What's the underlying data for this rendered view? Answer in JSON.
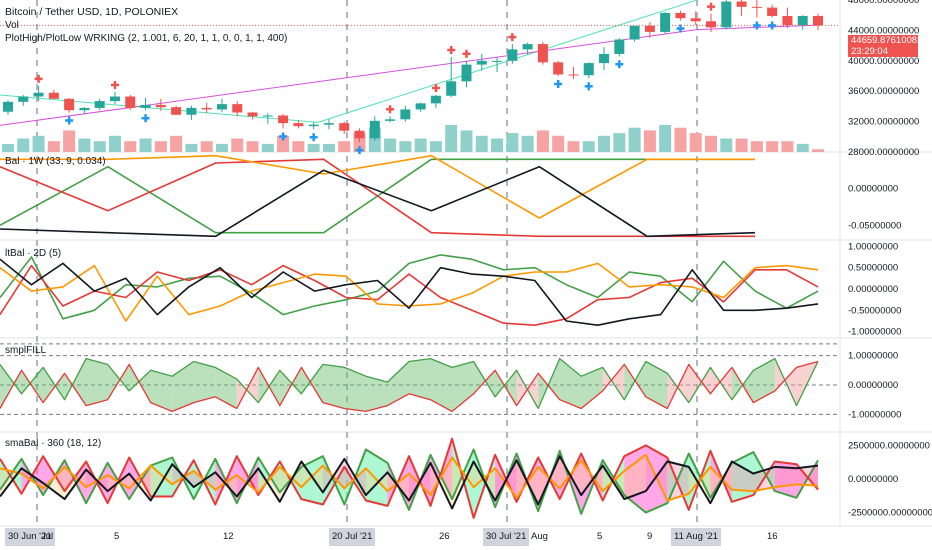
{
  "header": {
    "symbol_line": "Bitcoin / Tether USD, 1D, POLONIEX",
    "vol_label": "Vol",
    "indicator": "PlotHigh/PlotLow WRKING (2, 1.001, 6, 20, 1, 1, 0, 0, 1, 1, 400)"
  },
  "last_price": {
    "value": "44659.87610081",
    "countdown": "23:29:04"
  },
  "colors": {
    "up": "#26a69a",
    "down": "#ef5350",
    "vol_up": "#8fd1ca",
    "vol_down": "#f5a3a3",
    "green": "#43a047",
    "red": "#e53935",
    "orange": "#ff9800",
    "black": "#131722",
    "teal_line": "#4fe3b0",
    "magenta_line": "#d64ee0",
    "pink_fill": "#ff5fd4",
    "blue_cross": "#2196f3"
  },
  "x_axis": {
    "labels": [
      "30 Jun '21",
      "Jul",
      "5",
      "12",
      "20 Jul '21",
      "26",
      "30 Jul '21",
      "Aug",
      "5",
      "9",
      "11 Aug '21",
      "16"
    ],
    "highlighted": [
      "30 Jun '21",
      "20 Jul '21",
      "30 Jul '21",
      "11 Aug '21"
    ]
  },
  "panes": [
    {
      "name": "price",
      "labels": [
        "48000.00000000",
        "44000.00000000",
        "40000.00000000",
        "36000.00000000",
        "32000.00000000",
        "28000.00000000"
      ]
    },
    {
      "name": "bal",
      "title": "Bal · 1W (33, 9, 0.034)",
      "labels": [
        "0.00000000",
        "-0.05000000"
      ]
    },
    {
      "name": "ltbal",
      "title": "ltBal · 2D (5)",
      "labels": [
        "1.00000000",
        "0.50000000",
        "0.00000000",
        "-0.50000000",
        "-1.00000000"
      ]
    },
    {
      "name": "smpl",
      "title": "smplFILL",
      "labels": [
        "1.00000000",
        "0.00000000",
        "-1.00000000"
      ]
    },
    {
      "name": "smabal",
      "title": "smaBal · 360 (18, 12)",
      "labels": [
        "2500000.00000000",
        "0.00000000",
        "-2500000.00000000"
      ]
    }
  ],
  "chart_data": [
    {
      "type": "candlestick",
      "title": "Bitcoin / Tether USD, 1D, POLONIEX",
      "ylim": [
        28000,
        48000
      ],
      "x": [
        "Jun 27",
        "Jun 28",
        "Jun 29",
        "Jun 30",
        "Jul 1",
        "Jul 2",
        "Jul 3",
        "Jul 4",
        "Jul 5",
        "Jul 6",
        "Jul 7",
        "Jul 8",
        "Jul 9",
        "Jul 10",
        "Jul 11",
        "Jul 12",
        "Jul 13",
        "Jul 14",
        "Jul 15",
        "Jul 16",
        "Jul 17",
        "Jul 18",
        "Jul 19",
        "Jul 20",
        "Jul 21",
        "Jul 22",
        "Jul 23",
        "Jul 24",
        "Jul 25",
        "Jul 26",
        "Jul 27",
        "Jul 28",
        "Jul 29",
        "Jul 30",
        "Jul 31",
        "Aug 1",
        "Aug 2",
        "Aug 3",
        "Aug 4",
        "Aug 5",
        "Aug 6",
        "Aug 7",
        "Aug 8",
        "Aug 9",
        "Aug 10",
        "Aug 11",
        "Aug 12",
        "Aug 13",
        "Aug 14",
        "Aug 15",
        "Aug 16",
        "Aug 17",
        "Aug 18",
        "Aug 19"
      ],
      "open": [
        33300,
        34600,
        35300,
        35800,
        35000,
        33500,
        33800,
        34700,
        35300,
        33800,
        34200,
        33900,
        32900,
        33800,
        33600,
        34300,
        33200,
        32700,
        32800,
        31800,
        31400,
        31600,
        31800,
        30800,
        29800,
        32100,
        32300,
        33600,
        34400,
        35400,
        37300,
        39500,
        40000,
        40000,
        41500,
        42200,
        39800,
        38200,
        38100,
        39700,
        40900,
        42800,
        44600,
        43800,
        46300,
        45600,
        45200,
        44400,
        47800,
        47100,
        47000,
        45900,
        44700,
        45900
      ],
      "high": [
        34800,
        35500,
        36700,
        36200,
        35100,
        33900,
        35000,
        35900,
        35500,
        35100,
        35000,
        34100,
        34100,
        34500,
        35000,
        34700,
        33300,
        33100,
        33000,
        32200,
        31900,
        32300,
        32000,
        31100,
        32700,
        32700,
        34100,
        34500,
        35500,
        40500,
        40000,
        40900,
        40500,
        42200,
        42400,
        42500,
        40000,
        39200,
        39800,
        41800,
        43000,
        44500,
        45100,
        46400,
        46600,
        46500,
        46200,
        48100,
        48200,
        48000,
        47400,
        47000,
        46000,
        46200
      ],
      "low": [
        32900,
        34100,
        34700,
        35000,
        33200,
        33000,
        33500,
        34300,
        33500,
        33500,
        33400,
        32900,
        32200,
        33100,
        33300,
        32700,
        32300,
        31700,
        31100,
        31100,
        31000,
        31000,
        30400,
        29300,
        29500,
        31900,
        32000,
        33300,
        33800,
        35200,
        36500,
        38700,
        38500,
        39600,
        40800,
        39500,
        38000,
        37600,
        37700,
        38800,
        40600,
        42500,
        43000,
        43500,
        45300,
        44700,
        43800,
        44100,
        45900,
        45700,
        45700,
        44300,
        44100,
        44000
      ],
      "close": [
        34600,
        35300,
        35800,
        35000,
        33500,
        33800,
        34700,
        35300,
        33800,
        34200,
        33900,
        32900,
        33800,
        33600,
        34300,
        33200,
        32700,
        32800,
        31800,
        31400,
        31600,
        31800,
        30800,
        29800,
        32100,
        32300,
        33600,
        34400,
        35400,
        37300,
        39500,
        40000,
        40000,
        41500,
        42200,
        39800,
        38200,
        38100,
        39700,
        40900,
        42800,
        44600,
        43800,
        46300,
        45600,
        45200,
        44400,
        47800,
        47100,
        47000,
        45900,
        44700,
        45900,
        44659.88
      ]
    },
    {
      "type": "bar",
      "title": "Vol",
      "series": [
        {
          "name": "Vol",
          "values": [
            3,
            5,
            6,
            4,
            8,
            5,
            4,
            6,
            4,
            5,
            4,
            6,
            3,
            4,
            3,
            5,
            4,
            3,
            6,
            4,
            3,
            3,
            4,
            7,
            9,
            5,
            4,
            5,
            4,
            10,
            8,
            6,
            5,
            7,
            6,
            8,
            6,
            4,
            4,
            6,
            7,
            9,
            8,
            10,
            9,
            7,
            6,
            5,
            5,
            4,
            4,
            4,
            3,
            1
          ]
        }
      ]
    },
    {
      "type": "line",
      "title": "Bal · 1W (33, 9, 0.034)",
      "ylim": [
        -0.07,
        0.05
      ],
      "x": [
        "Jun 28",
        "Jul 5",
        "Jul 12",
        "Jul 19",
        "Jul 26",
        "Aug 2",
        "Aug 9",
        "Aug 16"
      ],
      "series": [
        {
          "name": "green",
          "color": "#43a047",
          "values": [
            -0.05,
            0.03,
            -0.06,
            -0.06,
            0.04,
            0.04,
            0.04,
            0.04
          ]
        },
        {
          "name": "red",
          "color": "#e53935",
          "values": [
            0.03,
            -0.03,
            0.035,
            0.04,
            -0.06,
            -0.065,
            -0.065,
            -0.065
          ]
        },
        {
          "name": "orange",
          "color": "#ff9800",
          "values": [
            0.04,
            0.04,
            0.045,
            0.02,
            0.045,
            -0.04,
            0.04,
            0.04
          ]
        },
        {
          "name": "black",
          "color": "#131722",
          "values": [
            -0.055,
            -0.06,
            -0.065,
            0.025,
            -0.03,
            0.03,
            -0.065,
            -0.06
          ]
        }
      ]
    },
    {
      "type": "line",
      "title": "ltBal · 2D (5)",
      "ylim": [
        -1.15,
        1.15
      ],
      "x": [
        "Jun 27",
        "Jun 29",
        "Jul 1",
        "Jul 3",
        "Jul 5",
        "Jul 7",
        "Jul 9",
        "Jul 11",
        "Jul 13",
        "Jul 15",
        "Jul 17",
        "Jul 19",
        "Jul 21",
        "Jul 23",
        "Jul 25",
        "Jul 27",
        "Jul 29",
        "Jul 31",
        "Aug 2",
        "Aug 4",
        "Aug 6",
        "Aug 8",
        "Aug 10",
        "Aug 12",
        "Aug 14",
        "Aug 16",
        "Aug 18"
      ],
      "series": [
        {
          "name": "green",
          "color": "#43a047",
          "values": [
            -0.2,
            0.75,
            -0.7,
            -0.5,
            0.1,
            0.05,
            0.25,
            0.3,
            -0.1,
            -0.6,
            -0.4,
            -0.25,
            -0.05,
            0.6,
            0.8,
            0.7,
            0.45,
            0.5,
            0.1,
            -0.2,
            0.4,
            0.3,
            -0.3,
            0.65,
            -0.05,
            -0.45,
            -0.05
          ]
        },
        {
          "name": "red",
          "color": "#e53935",
          "values": [
            -0.6,
            0.55,
            -0.4,
            -0.05,
            -0.2,
            0.4,
            0.2,
            0.45,
            0.1,
            0.55,
            0.2,
            -0.2,
            -0.25,
            0.35,
            -0.2,
            -0.5,
            -0.8,
            -0.85,
            -0.7,
            -0.25,
            -0.2,
            0.15,
            0.25,
            -0.3,
            0.45,
            0.45,
            0.05
          ]
        },
        {
          "name": "orange",
          "color": "#ff9800",
          "values": [
            0.5,
            -0.05,
            0.05,
            0.55,
            -0.75,
            0.3,
            -0.6,
            -0.4,
            -0.05,
            0.15,
            0.35,
            0.3,
            -0.35,
            -0.4,
            -0.35,
            -0.1,
            0.3,
            0.4,
            0.4,
            0.6,
            0.05,
            0.1,
            0.05,
            -0.2,
            0.5,
            0.55,
            0.45
          ]
        },
        {
          "name": "black",
          "color": "#131722",
          "values": [
            0.7,
            0.1,
            0.6,
            -0.05,
            0.25,
            -0.6,
            0.05,
            0.5,
            -0.2,
            0.4,
            -0.05,
            0.1,
            0.2,
            -0.45,
            0.5,
            0.35,
            0.3,
            0.2,
            -0.75,
            -0.85,
            -0.7,
            -0.6,
            0.45,
            -0.5,
            -0.5,
            -0.45,
            -0.35
          ]
        }
      ]
    },
    {
      "type": "area",
      "title": "smplFILL",
      "ylim": [
        -1.6,
        1.6
      ],
      "series": [
        {
          "name": "upper",
          "color": "#43a047",
          "values": [
            0.7,
            -0.3,
            0.6,
            -0.5,
            0.9,
            0.7,
            -0.2,
            0.5,
            0.3,
            0.8,
            0.6,
            0.2,
            -0.6,
            0.5,
            -0.3,
            0.7,
            0.6,
            0.3,
            0.1,
            0.8,
            0.9,
            0.6,
            0.8,
            -0.4,
            0.5,
            -0.8,
            0.9,
            0.3,
            0.6,
            -0.5,
            0.8,
            0.4,
            -0.6,
            0.6,
            -0.5,
            0.5,
            0.9,
            -0.7,
            0.8
          ]
        },
        {
          "name": "lower",
          "color": "#e53935",
          "values": [
            -0.8,
            0.5,
            -0.6,
            0.4,
            -0.7,
            -0.5,
            0.7,
            -0.6,
            -0.9,
            -0.6,
            -0.4,
            -0.8,
            0.6,
            -0.7,
            0.6,
            -0.6,
            -0.8,
            -0.9,
            -0.7,
            -0.3,
            -0.5,
            -0.9,
            -0.3,
            0.5,
            -0.7,
            0.4,
            -0.5,
            -0.8,
            -0.2,
            0.7,
            -0.4,
            -0.8,
            0.7,
            -0.3,
            0.6,
            -0.6,
            -0.2,
            0.6,
            0.8
          ]
        }
      ]
    },
    {
      "type": "area",
      "title": "smaBal · 360 (18, 12)",
      "ylim": [
        -3500000,
        3500000
      ],
      "series": [
        {
          "name": "green",
          "color": "#43a047",
          "values": [
            -800000,
            1500000,
            -1200000,
            1400000,
            -1800000,
            1200000,
            -1500000,
            1000000,
            1600000,
            -1500000,
            1500000,
            -1800000,
            1600000,
            -1000000,
            900000,
            1700000,
            -1900000,
            2200000,
            1200000,
            -2300000,
            1800000,
            -1500000,
            2200000,
            -2100000,
            1900000,
            -2400000,
            2100000,
            -2600000,
            1400000,
            -1200000,
            -2500000,
            -1800000,
            1900000,
            -1400000,
            1200000,
            2000000,
            -900000,
            -1400000,
            1400000
          ]
        },
        {
          "name": "pink",
          "color": "#e53935",
          "values": [
            1500000,
            -1100000,
            1700000,
            -900000,
            1300000,
            -1800000,
            1600000,
            -1300000,
            -1300000,
            1400000,
            -1900000,
            1700000,
            -1200000,
            1300000,
            -1500000,
            -1900000,
            900000,
            -1600000,
            -2000000,
            1700000,
            -2000000,
            3000000,
            -2900000,
            1800000,
            -1700000,
            1600000,
            -1500000,
            1900000,
            -1600000,
            1700000,
            2500000,
            1600000,
            -2300000,
            2100000,
            -1700000,
            -1200000,
            1300000,
            1100000,
            -800000
          ]
        },
        {
          "name": "orange",
          "color": "#ff9800",
          "values": [
            800000,
            400000,
            -700000,
            900000,
            -600000,
            300000,
            -700000,
            1000000,
            -400000,
            600000,
            -800000,
            300000,
            -1000000,
            900000,
            -600000,
            1000000,
            -700000,
            800000,
            -900000,
            400000,
            -1200000,
            1600000,
            -600000,
            800000,
            -1400000,
            900000,
            -700000,
            1400000,
            -900000,
            600000,
            1800000,
            -1600000,
            -1100000,
            900000,
            -800000,
            -900000,
            -600000,
            -400000,
            -500000
          ]
        },
        {
          "name": "black",
          "color": "#131722",
          "values": [
            -1300000,
            800000,
            -300000,
            -1500000,
            700000,
            -900000,
            400000,
            -1600000,
            1100000,
            -600000,
            500000,
            -1300000,
            800000,
            -1700000,
            1300000,
            -1000000,
            1500000,
            -1200000,
            500000,
            -1600000,
            1200000,
            -2200000,
            1300000,
            -1600000,
            1400000,
            -1900000,
            1700000,
            -1200000,
            1000000,
            -1500000,
            -900000,
            1300000,
            900000,
            -1800000,
            1300000,
            400000,
            900000,
            800000,
            1000000
          ]
        }
      ]
    }
  ]
}
